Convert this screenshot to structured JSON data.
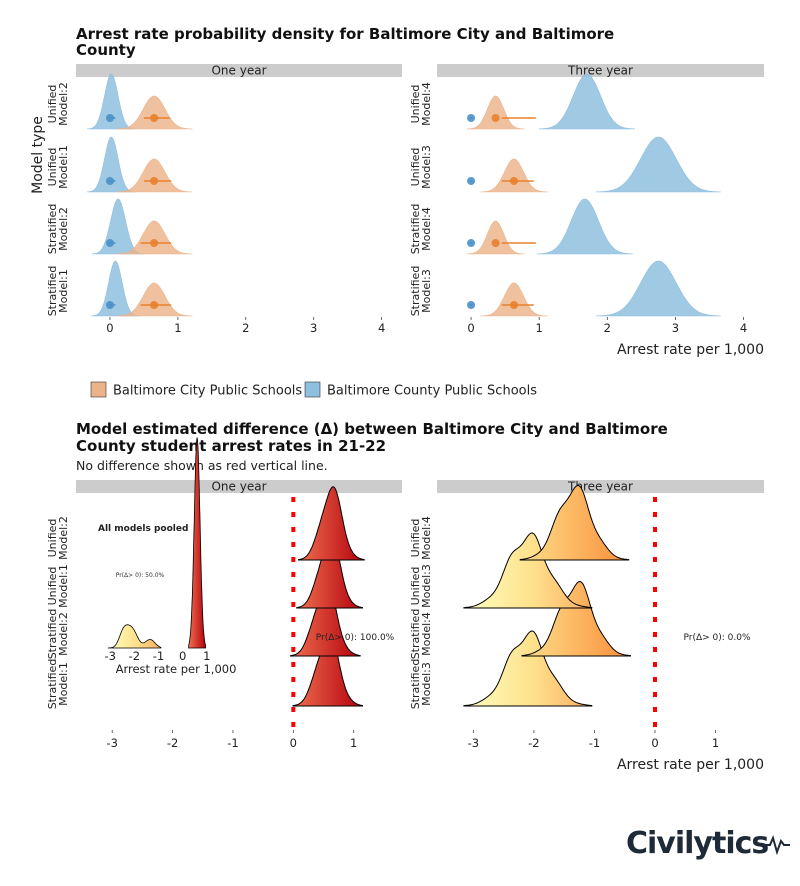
{
  "colors": {
    "city": "#ebb38a",
    "city_point": "#e8812d",
    "county": "#8fbfdf",
    "county_point": "#4a90c8",
    "strip": "#cccccc",
    "zero_line": "#ff0000",
    "diff_low": "#ffffbf",
    "diff_mid": "#fdae61",
    "diff_high": "#d7191c"
  },
  "top_chart": {
    "title_line1": "Arrest rate probability density for Baltimore City and Baltimore",
    "title_line2": "County",
    "y_axis_title": "Model type",
    "x_axis_title": "Arrest rate per 1,000",
    "x_ticks": [
      "0",
      "1",
      "2",
      "3",
      "4"
    ],
    "legend": [
      {
        "label": "Baltimore City Public Schools",
        "color_key": "city"
      },
      {
        "label": "Baltimore County Public Schools",
        "color_key": "county"
      }
    ]
  },
  "bottom_chart": {
    "title_line1": "Model estimated difference (Δ) between Baltimore City and Baltimore",
    "title_line2": "County student arrest rates in 21-22",
    "subtitle": "No difference shown as red vertical line.",
    "x_axis_title": "Arrest rate per 1,000",
    "x_ticks": [
      "-3",
      "-2",
      "-1",
      "0",
      "1"
    ],
    "pooled_title": "All models pooled",
    "pooled_prob_label": "Pr(Δ> 0): 50.0%",
    "pooled_x_title": "Arrest rate per 1,000",
    "pooled_ticks": [
      "-3",
      "-2",
      "-1",
      "0",
      "1"
    ],
    "one_year_prob_label": "Pr(Δ> 0): 100.0%",
    "three_year_prob_label": "Pr(Δ> 0): 0.0%"
  },
  "chart_data": [
    {
      "type": "ridgeline-density",
      "title": "Arrest rate probability density for Baltimore City and Baltimore County",
      "xlabel": "Arrest rate per 1,000",
      "ylabel": "Model type",
      "xlim": [
        -0.5,
        4.3
      ],
      "legend_position": "bottom",
      "panels": [
        {
          "name": "One year",
          "rows": [
            {
              "label": [
                "Unified",
                "Model:2"
              ],
              "city": {
                "mean": 0.65,
                "sd": 0.16,
                "ci": [
                  0.5,
                  0.88
                ]
              },
              "county": {
                "mean": 0.02,
                "sd": 0.1,
                "ci": [
                  -0.02,
                  0.08
                ]
              }
            },
            {
              "label": [
                "Unified",
                "Model:1"
              ],
              "city": {
                "mean": 0.65,
                "sd": 0.16,
                "ci": [
                  0.5,
                  0.9
                ]
              },
              "county": {
                "mean": 0.02,
                "sd": 0.1,
                "ci": [
                  -0.02,
                  0.08
                ]
              }
            },
            {
              "label": [
                "Stratified",
                "Model:2"
              ],
              "city": {
                "mean": 0.65,
                "sd": 0.16,
                "ci": [
                  0.45,
                  0.9
                ]
              },
              "county": {
                "mean": 0.12,
                "sd": 0.11,
                "ci": [
                  -0.02,
                  0.08
                ]
              }
            },
            {
              "label": [
                "Stratified",
                "Model:1"
              ],
              "city": {
                "mean": 0.65,
                "sd": 0.16,
                "ci": [
                  0.45,
                  0.9
                ]
              },
              "county": {
                "mean": 0.08,
                "sd": 0.1,
                "ci": [
                  -0.02,
                  0.08
                ]
              }
            }
          ]
        },
        {
          "name": "Three year",
          "rows": [
            {
              "label": [
                "Unified",
                "Model:4"
              ],
              "city": {
                "mean": 0.36,
                "sd": 0.12,
                "ci": [
                  0.45,
                  0.95
                ]
              },
              "county": {
                "mean": 1.7,
                "sd": 0.2,
                "ci": [
                  -0.02,
                  0.02
                ]
              }
            },
            {
              "label": [
                "Unified",
                "Model:3"
              ],
              "city": {
                "mean": 0.63,
                "sd": 0.14,
                "ci": [
                  0.45,
                  0.92
                ]
              },
              "county": {
                "mean": 2.75,
                "sd": 0.26,
                "ci": [
                  -0.02,
                  0.02
                ]
              }
            },
            {
              "label": [
                "Stratified",
                "Model:4"
              ],
              "city": {
                "mean": 0.36,
                "sd": 0.12,
                "ci": [
                  0.45,
                  0.95
                ]
              },
              "county": {
                "mean": 1.67,
                "sd": 0.2,
                "ci": [
                  -0.02,
                  0.02
                ]
              }
            },
            {
              "label": [
                "Stratified",
                "Model:3"
              ],
              "city": {
                "mean": 0.63,
                "sd": 0.14,
                "ci": [
                  0.45,
                  0.92
                ]
              },
              "county": {
                "mean": 2.75,
                "sd": 0.26,
                "ci": [
                  -0.02,
                  0.02
                ]
              }
            }
          ]
        }
      ]
    },
    {
      "type": "ridgeline-density",
      "title": "Model estimated difference (Δ) between Baltimore City and Baltimore County student arrest rates in 21-22",
      "xlabel": "Arrest rate per 1,000",
      "xlim": [
        -3.6,
        1.8
      ],
      "reference_line_x": 0,
      "panels": [
        {
          "name": "One year",
          "prob_positive": "100.0%",
          "rows": [
            {
              "label": [
                "Unified",
                "Model:2"
              ],
              "mean": 0.63,
              "sd": 0.17
            },
            {
              "label": [
                "Unified",
                "Model:1"
              ],
              "mean": 0.6,
              "sd": 0.17
            },
            {
              "label": [
                "Stratified",
                "Model:2"
              ],
              "mean": 0.53,
              "sd": 0.18
            },
            {
              "label": [
                "Stratified",
                "Model:1"
              ],
              "mean": 0.57,
              "sd": 0.18
            }
          ]
        },
        {
          "name": "Three year",
          "prob_positive": "0.0%",
          "rows": [
            {
              "label": [
                "Unified",
                "Model:4"
              ],
              "mean": -1.33,
              "sd": 0.28
            },
            {
              "label": [
                "Unified",
                "Model:3"
              ],
              "mean": -2.1,
              "sd": 0.33
            },
            {
              "label": [
                "Stratified",
                "Model:4"
              ],
              "mean": -1.3,
              "sd": 0.28
            },
            {
              "label": [
                "Stratified",
                "Model:3"
              ],
              "mean": -2.1,
              "sd": 0.33
            }
          ]
        }
      ],
      "inset": {
        "title": "All models pooled",
        "prob_positive": "50.0%",
        "xlim": [
          -3.3,
          1.3
        ],
        "components": [
          {
            "mean": -2.45,
            "sd": 0.18,
            "weight": 0.18
          },
          {
            "mean": -2.1,
            "sd": 0.22,
            "weight": 0.22
          },
          {
            "mean": -1.35,
            "sd": 0.2,
            "weight": 0.1
          },
          {
            "mean": 0.6,
            "sd": 0.12,
            "weight": 0.5
          }
        ]
      }
    }
  ],
  "brand": {
    "logo_text": "Civilytics"
  }
}
